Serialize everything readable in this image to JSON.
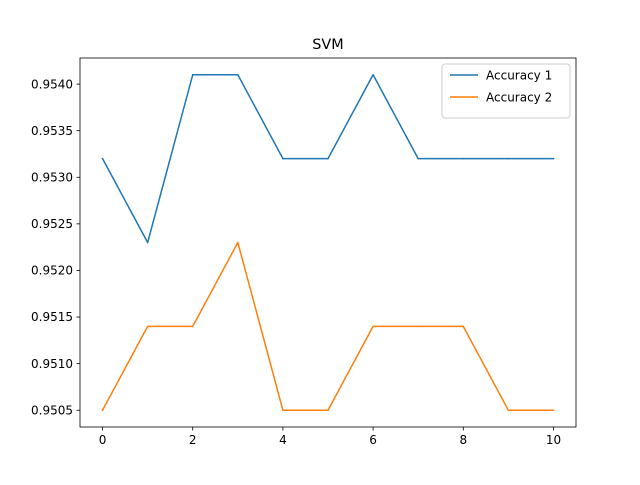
{
  "chart_data": {
    "type": "line",
    "title": "SVM",
    "xlabel": "",
    "ylabel": "",
    "x": [
      0,
      1,
      2,
      3,
      4,
      5,
      6,
      7,
      8,
      9,
      10
    ],
    "series": [
      {
        "name": "Accuracy 1",
        "color": "#1f77b4",
        "values": [
          0.9532,
          0.9523,
          0.9541,
          0.9541,
          0.9532,
          0.9532,
          0.9541,
          0.9532,
          0.9532,
          0.9532,
          0.9532
        ]
      },
      {
        "name": "Accuracy 2",
        "color": "#ff7f0e",
        "values": [
          0.9505,
          0.9514,
          0.9514,
          0.9523,
          0.9505,
          0.9505,
          0.9514,
          0.9514,
          0.9514,
          0.9505,
          0.9505
        ]
      }
    ],
    "xlim": [
      -0.5,
      10.5
    ],
    "ylim": [
      0.95032,
      0.95428
    ],
    "xticks": [
      0,
      2,
      4,
      6,
      8,
      10
    ],
    "xtick_labels": [
      "0",
      "2",
      "4",
      "6",
      "8",
      "10"
    ],
    "yticks": [
      0.9505,
      0.951,
      0.9515,
      0.952,
      0.9525,
      0.953,
      0.9535,
      0.954
    ],
    "ytick_labels": [
      "0.9505",
      "0.9510",
      "0.9515",
      "0.9520",
      "0.9525",
      "0.9530",
      "0.9535",
      "0.9540"
    ],
    "grid": false,
    "legend_position": "top-right"
  }
}
